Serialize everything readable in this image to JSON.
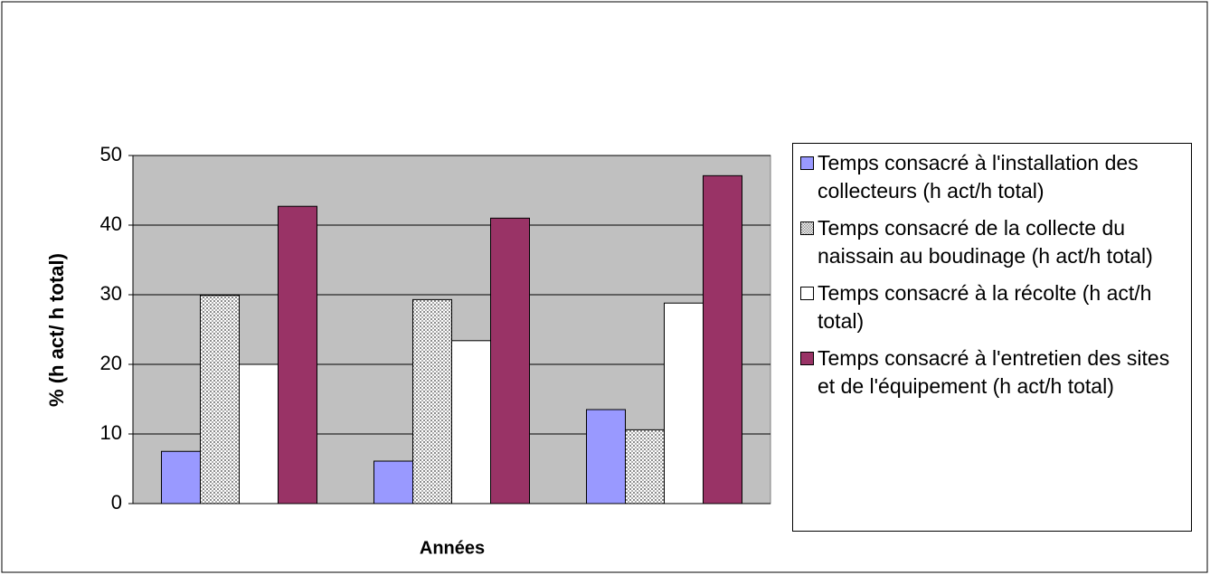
{
  "chart_data": {
    "type": "bar",
    "x_label": "Années",
    "y_label": "% (h act/ h  total)",
    "categories": [
      null,
      null,
      null
    ],
    "ylim": [
      0,
      50
    ],
    "yticks": [
      0,
      10,
      20,
      30,
      40,
      50
    ],
    "grid": true,
    "plot_background": "#c0c0c0",
    "legend": "right",
    "series": [
      {
        "name": "Temps consacré à l'installation des collecteurs (h act/h total)",
        "color": "#9999ff",
        "values": [
          7.5,
          6.1,
          13.5
        ]
      },
      {
        "name": "Temps consacré de la collecte du naissain au boudinage (h act/h total)",
        "color": "#d4d4d4",
        "pattern": "dots",
        "values": [
          29.9,
          29.3,
          10.6
        ]
      },
      {
        "name": "Temps consacré à la récolte (h act/h total)",
        "color": "#ffffff",
        "values": [
          20,
          23.4,
          28.8
        ]
      },
      {
        "name": "Temps consacré à l'entretien des sites et de l'équipement (h act/h total)",
        "color": "#993366",
        "values": [
          42.7,
          41,
          47.1
        ]
      }
    ]
  }
}
